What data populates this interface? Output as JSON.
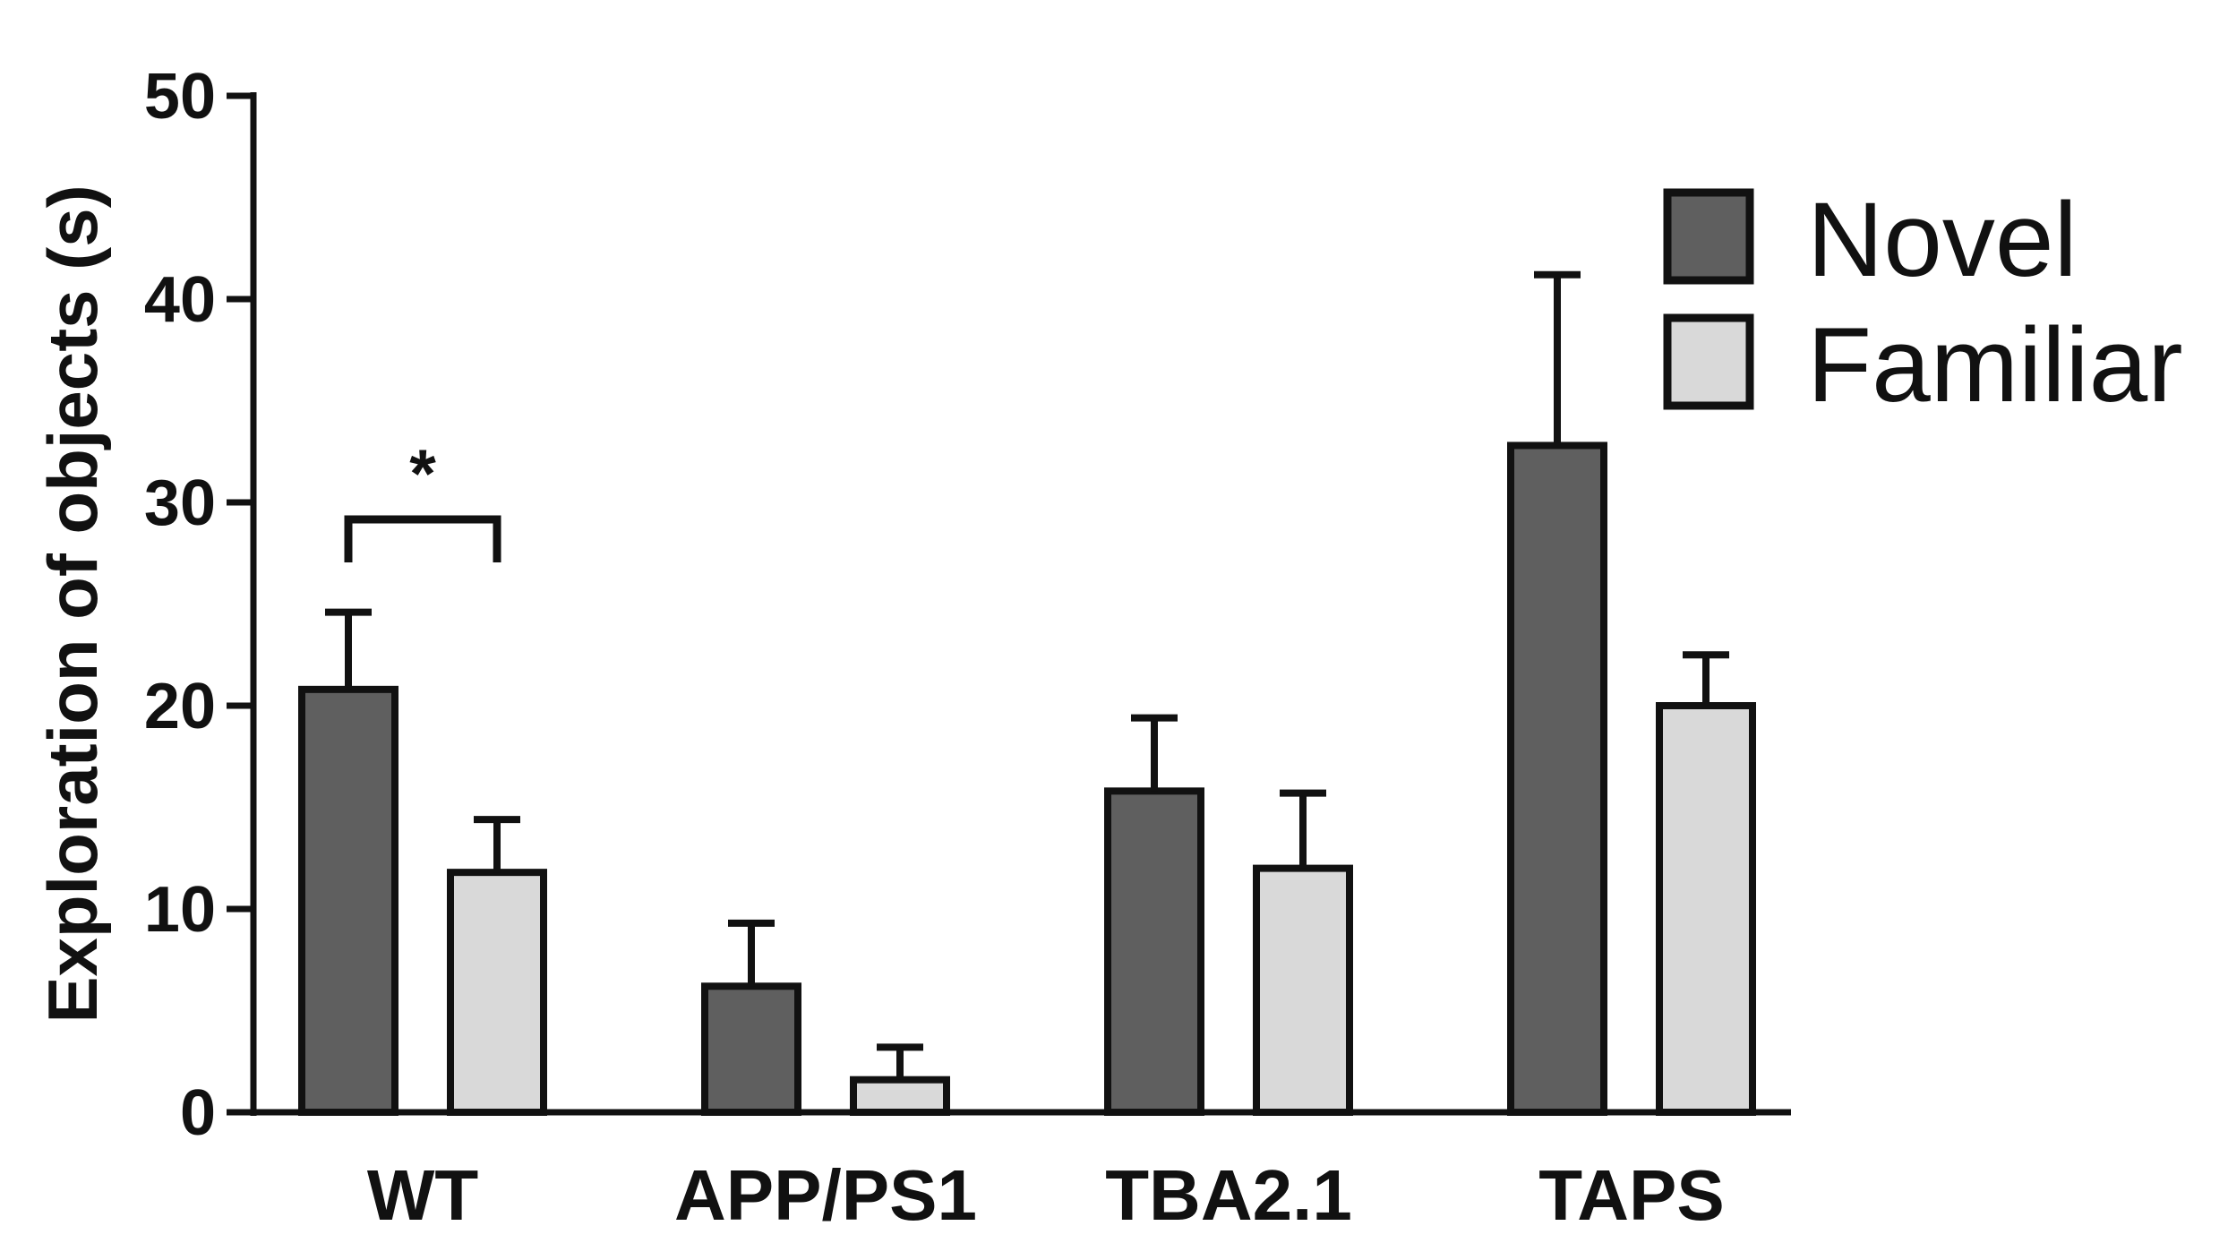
{
  "chart_data": {
    "type": "bar",
    "ylabel": "Exploration of objects (s)",
    "xlabel": "",
    "ylim": [
      0,
      50
    ],
    "yticks": [
      0,
      10,
      20,
      30,
      40,
      50
    ],
    "categories": [
      "WT",
      "APP/PS1",
      "TBA2.1",
      "TAPS"
    ],
    "series": [
      {
        "name": "Novel",
        "color": "#5f5f5f",
        "values": [
          20.8,
          6.2,
          15.8,
          32.8
        ],
        "errors": [
          3.8,
          3.1,
          3.6,
          8.4
        ]
      },
      {
        "name": "Familiar",
        "color": "#d9d9d9",
        "values": [
          11.8,
          1.6,
          12.0,
          20.0
        ],
        "errors": [
          2.6,
          1.6,
          3.7,
          2.5
        ]
      }
    ],
    "legend_position": "top-right",
    "annotations": [
      {
        "text": "*",
        "category": "WT",
        "between": [
          "Novel",
          "Familiar"
        ]
      }
    ],
    "grid": false
  }
}
